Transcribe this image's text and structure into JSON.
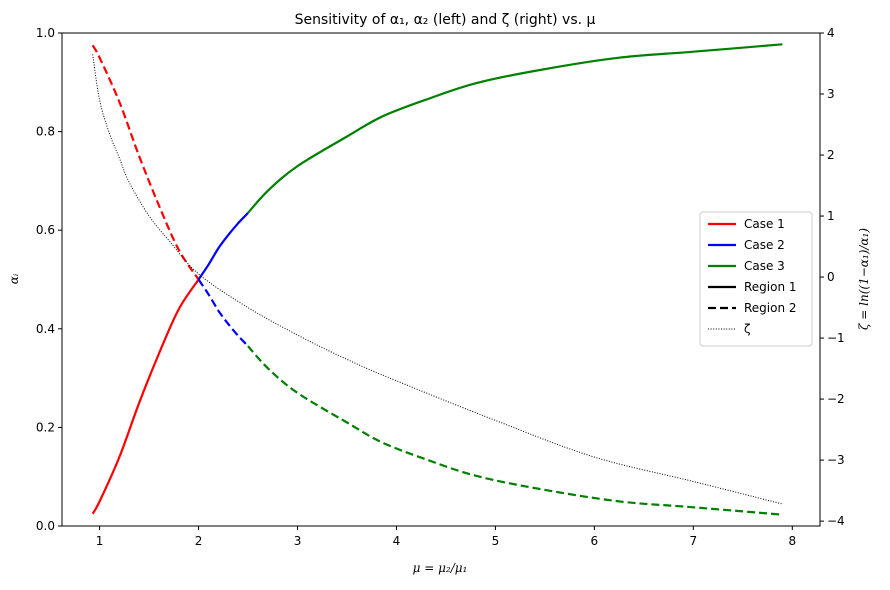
{
  "chart_data": {
    "type": "line",
    "title": "Sensitivity of α₁, α₂ (left) and ζ (right) vs. μ",
    "xlabel": "μ = μ₂/μ₁",
    "ylabel_left": "αᵢ",
    "ylabel_right": "ζ = ln((1−α₁)/α₁)",
    "xlim": [
      0.62,
      8.28
    ],
    "ylim_left": [
      0,
      1
    ],
    "ylim_right": [
      -4.08,
      4
    ],
    "xticks": [
      1,
      2,
      3,
      4,
      5,
      6,
      7,
      8
    ],
    "yticks_left": [
      "0.0",
      "0.2",
      "0.4",
      "0.6",
      "0.8",
      "1.0"
    ],
    "yticks_right": [
      "−4",
      "−3",
      "−2",
      "−1",
      "0",
      "1",
      "2",
      "3",
      "4"
    ],
    "legend_position": "center-right",
    "grid": false,
    "colors": {
      "case1": "#ff0000",
      "case2": "#0000ff",
      "case3": "#008000",
      "zeta": "#000000"
    },
    "legend": [
      {
        "label": "Case 1",
        "color": "#ff0000",
        "style": "solid"
      },
      {
        "label": "Case 2",
        "color": "#0000ff",
        "style": "solid"
      },
      {
        "label": "Case 3",
        "color": "#008000",
        "style": "solid"
      },
      {
        "label": "Region 1",
        "color": "#000000",
        "style": "solid"
      },
      {
        "label": "Region 2",
        "color": "#000000",
        "style": "dashed"
      },
      {
        "label": "ζ",
        "color": "#000000",
        "style": "dotted"
      }
    ],
    "series": [
      {
        "case": "case1",
        "region": 1,
        "axis": "left",
        "x": [
          0.93,
          1.0,
          1.2,
          1.4,
          1.6,
          1.8,
          2.0
        ],
        "y": [
          0.025,
          0.05,
          0.14,
          0.25,
          0.35,
          0.44,
          0.5
        ]
      },
      {
        "case": "case1",
        "region": 2,
        "axis": "left",
        "x": [
          0.93,
          1.0,
          1.2,
          1.4,
          1.6,
          1.8,
          2.0
        ],
        "y": [
          0.975,
          0.95,
          0.86,
          0.75,
          0.65,
          0.56,
          0.5
        ]
      },
      {
        "case": "case2",
        "region": 1,
        "axis": "left",
        "x": [
          2.0,
          2.1,
          2.2,
          2.3,
          2.4,
          2.5
        ],
        "y": [
          0.5,
          0.53,
          0.563,
          0.59,
          0.614,
          0.635
        ]
      },
      {
        "case": "case2",
        "region": 2,
        "axis": "left",
        "x": [
          2.0,
          2.1,
          2.2,
          2.3,
          2.4,
          2.5
        ],
        "y": [
          0.5,
          0.47,
          0.437,
          0.41,
          0.386,
          0.365
        ]
      },
      {
        "case": "case3",
        "region": 1,
        "axis": "left",
        "x": [
          2.5,
          2.7,
          3.0,
          3.5,
          3.85,
          4.3,
          4.8,
          5.45,
          6.25,
          7.0,
          7.9
        ],
        "y": [
          0.635,
          0.68,
          0.73,
          0.79,
          0.83,
          0.865,
          0.898,
          0.925,
          0.95,
          0.962,
          0.977
        ]
      },
      {
        "case": "case3",
        "region": 2,
        "axis": "left",
        "x": [
          2.5,
          2.7,
          3.0,
          3.5,
          3.85,
          4.3,
          4.8,
          5.45,
          6.25,
          7.0,
          7.9
        ],
        "y": [
          0.365,
          0.32,
          0.27,
          0.21,
          0.17,
          0.135,
          0.102,
          0.075,
          0.05,
          0.038,
          0.023
        ]
      },
      {
        "case": "zeta",
        "axis": "right",
        "x": [
          0.93,
          1.0,
          1.1,
          1.2,
          1.3,
          1.5,
          1.7,
          2.0,
          2.5,
          3.0,
          3.5,
          4.0,
          5.0,
          6.0,
          7.0,
          7.9
        ],
        "y": [
          3.65,
          2.9,
          2.35,
          1.95,
          1.55,
          1.0,
          0.6,
          0.05,
          -0.5,
          -0.95,
          -1.35,
          -1.7,
          -2.35,
          -2.95,
          -3.35,
          -3.72
        ]
      }
    ]
  }
}
